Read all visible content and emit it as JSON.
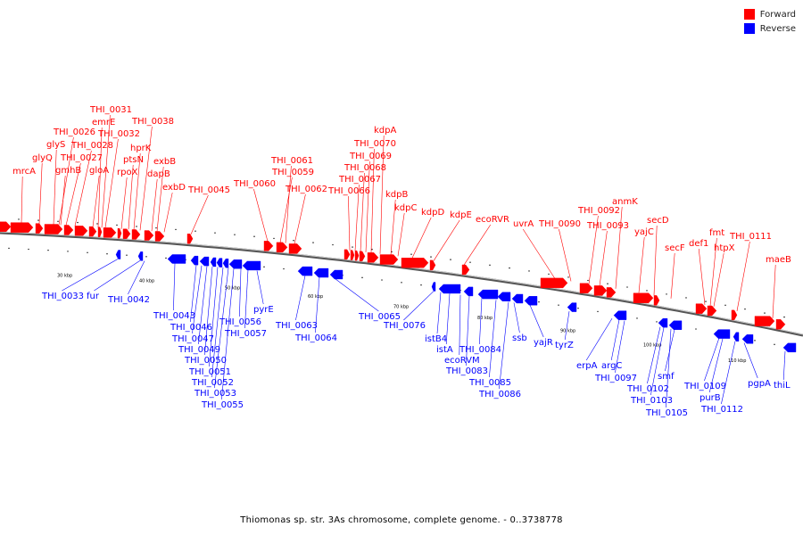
{
  "legend": {
    "forward_label": "Forward",
    "reverse_label": "Reverse",
    "forward_color": "#ff0000",
    "reverse_color": "#0000ff"
  },
  "caption": "Thiomonas sp. str. 3As chromosome, complete genome. - 0..3738778",
  "scale_ticks": [
    "30 kbp",
    "40 kbp",
    "50 kbp",
    "60 kbp",
    "70 kbp",
    "80 kbp",
    "90 kbp",
    "100 kbp",
    "110 kbp"
  ],
  "forward_labels": [
    "mrcA",
    "glyQ",
    "glyS",
    "THI_0026",
    "gmhB",
    "THI_0027",
    "THI_0028",
    "gloA",
    "emrE",
    "THI_0031",
    "THI_0032",
    "rpoX",
    "ptsN",
    "hprK",
    "THI_0038",
    "dapB",
    "exbB",
    "exbD",
    "THI_0045",
    "THI_0060",
    "THI_0059",
    "THI_0061",
    "THI_0062",
    "THI_0066",
    "THI_0067",
    "THI_0068",
    "THI_0069",
    "THI_0070",
    "kdpA",
    "kdpB",
    "kdpC",
    "kdpD",
    "kdpE",
    "ecoRVR",
    "uvrA",
    "THI_0090",
    "THI_0092",
    "THI_0093",
    "anmK",
    "yajC",
    "secD",
    "secF",
    "def1",
    "fmt",
    "htpX",
    "THI_0111",
    "maeB"
  ],
  "reverse_labels": [
    "THI_0033",
    "fur",
    "THI_0042",
    "THI_0043",
    "THI_0046",
    "THI_0047",
    "THI_0049",
    "THI_0050",
    "THI_0051",
    "THI_0052",
    "THI_0053",
    "THI_0055",
    "THI_0056",
    "THI_0057",
    "pyrE",
    "THI_0063",
    "THI_0064",
    "THI_0065",
    "THI_0076",
    "istB4",
    "istA",
    "ecoRVM",
    "THI_0083",
    "THI_0084",
    "THI_0085",
    "THI_0086",
    "ssb",
    "yajR",
    "tyrZ",
    "erpA",
    "argC",
    "THI_0097",
    "THI_0102",
    "THI_0103",
    "THI_0105",
    "smf",
    "THI_0109",
    "purB",
    "THI_0112",
    "pgpA",
    "thiL"
  ]
}
